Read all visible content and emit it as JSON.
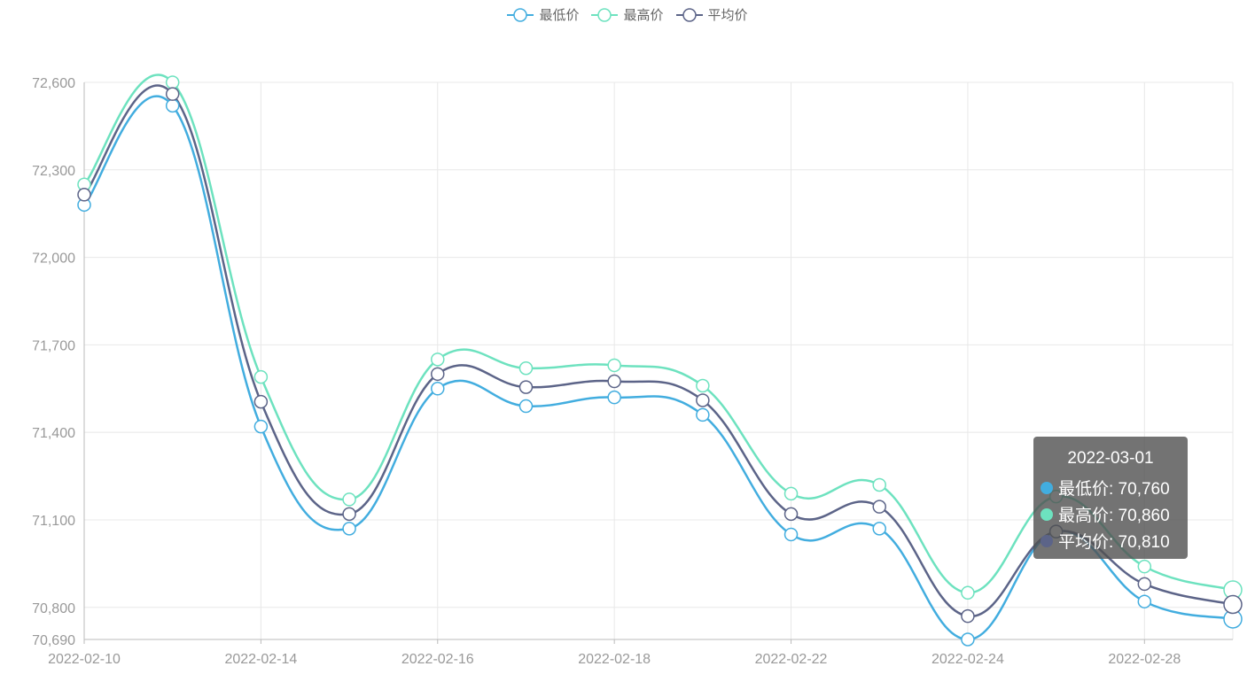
{
  "chart_data": {
    "type": "line",
    "x": [
      "2022-02-10",
      "2022-02-11",
      "2022-02-14",
      "2022-02-15",
      "2022-02-16",
      "2022-02-17",
      "2022-02-18",
      "2022-02-21",
      "2022-02-22",
      "2022-02-23",
      "2022-02-24",
      "2022-02-25",
      "2022-02-28",
      "2022-03-01"
    ],
    "x_tick_labels": [
      "2022-02-10",
      "2022-02-14",
      "2022-02-16",
      "2022-02-18",
      "2022-02-22",
      "2022-02-24",
      "2022-02-28"
    ],
    "y_tick_labels": [
      "70,690",
      "70,800",
      "71,100",
      "71,400",
      "71,700",
      "72,000",
      "72,300",
      "72,600"
    ],
    "y_ticks": [
      70690,
      70800,
      71100,
      71400,
      71700,
      72000,
      72300,
      72600
    ],
    "ylim": [
      70690,
      72600
    ],
    "grid": true,
    "legend_position": "top-center",
    "smooth": true,
    "series": [
      {
        "name": "最低价",
        "color": "#42ADDF",
        "values": [
          72180,
          72520,
          71420,
          71070,
          71550,
          71490,
          71520,
          71460,
          71050,
          71070,
          70690,
          71060,
          70820,
          70760
        ]
      },
      {
        "name": "最高价",
        "color": "#6DE2BF",
        "values": [
          72250,
          72600,
          71590,
          71170,
          71650,
          71620,
          71630,
          71560,
          71190,
          71220,
          70850,
          71180,
          70940,
          70860
        ]
      },
      {
        "name": "平均价",
        "color": "#5C6488",
        "values": [
          72215,
          72560,
          71505,
          71120,
          71600,
          71555,
          71575,
          71510,
          71120,
          71145,
          70770,
          71060,
          70880,
          70810
        ]
      }
    ],
    "tooltip": {
      "title": "2022-03-01",
      "rows": [
        {
          "label": "最低价: 70,760",
          "color": "#42ADDF"
        },
        {
          "label": "最高价: 70,860",
          "color": "#6DE2BF"
        },
        {
          "label": "平均价: 70,810",
          "color": "#5C6488"
        }
      ]
    }
  }
}
